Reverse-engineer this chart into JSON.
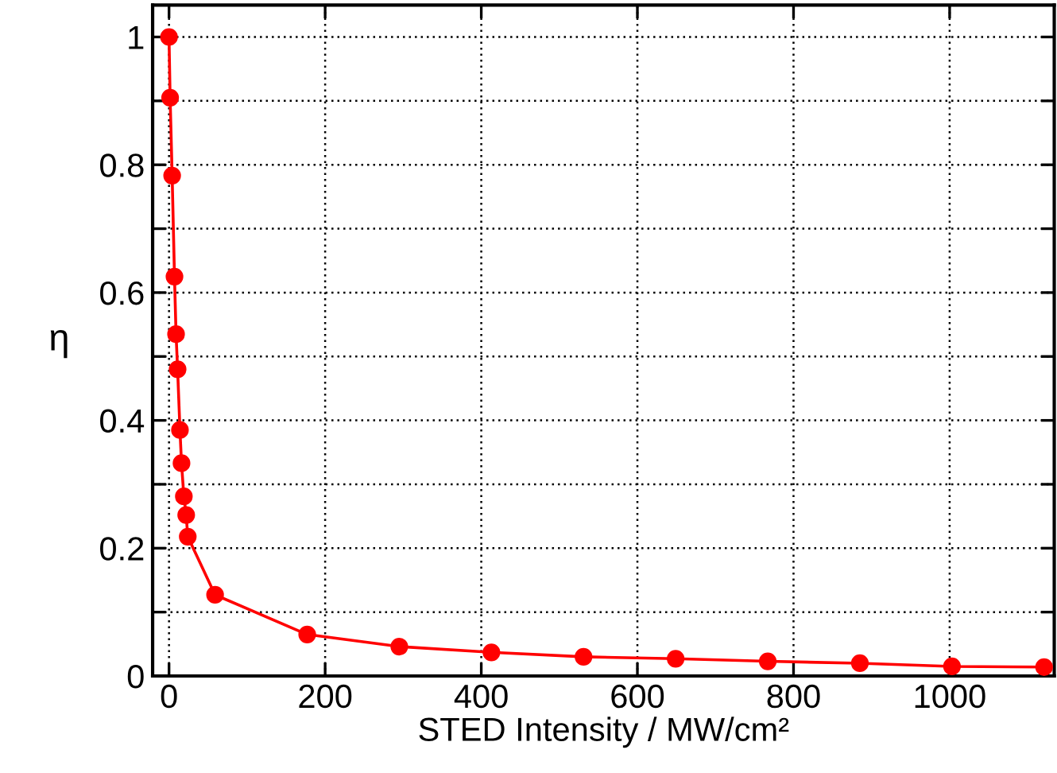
{
  "chart_data": {
    "type": "line",
    "xlabel": "STED Intensity / MW/cm²",
    "ylabel": "η",
    "x": [
      0,
      1.4,
      4,
      7,
      9,
      11,
      14,
      16,
      19,
      22,
      24,
      59,
      177,
      295,
      413,
      531,
      649,
      767,
      885,
      1003,
      1121
    ],
    "series": [
      {
        "color": "#ff0000",
        "values": [
          1.0,
          0.905,
          0.783,
          0.625,
          0.535,
          0.48,
          0.385,
          0.333,
          0.281,
          0.252,
          0.218,
          0.127,
          0.065,
          0.046,
          0.037,
          0.03,
          0.027,
          0.023,
          0.02,
          0.015,
          0.014
        ]
      }
    ],
    "xlim": [
      -21,
      1134
    ],
    "ylim": [
      0,
      1.05
    ],
    "xticks": [
      0,
      200,
      400,
      600,
      800,
      1000
    ],
    "yticks": [
      0,
      {
        "value": 0.1,
        "label": null
      },
      0.2,
      {
        "value": 0.3,
        "label": null
      },
      0.4,
      {
        "value": 0.5,
        "label": null
      },
      0.6,
      {
        "value": 0.7,
        "label": null
      },
      0.8,
      {
        "value": 0.9,
        "label": null
      },
      1
    ],
    "grid": true,
    "marker": "circle",
    "line_style": "solid"
  }
}
